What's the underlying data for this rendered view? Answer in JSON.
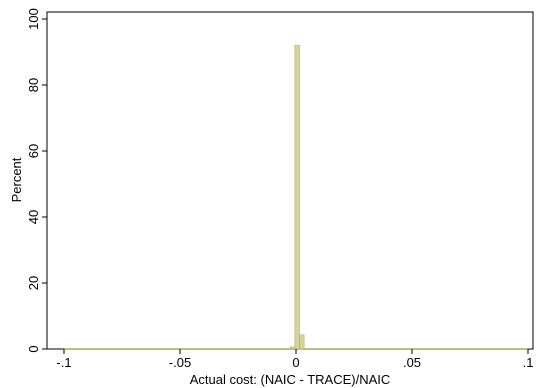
{
  "chart_data": {
    "type": "bar",
    "title": "",
    "xlabel": "Actual cost: (NAIC - TRACE)/NAIC",
    "ylabel": "Percent",
    "xlim": [
      -0.1,
      0.1
    ],
    "ylim": [
      0,
      100
    ],
    "x_ticks": [
      -0.1,
      -0.05,
      0,
      0.05,
      0.1
    ],
    "x_tick_labels": [
      "-.1",
      "-.05",
      "0",
      ".05",
      ".1"
    ],
    "y_ticks": [
      0,
      20,
      40,
      60,
      80,
      100
    ],
    "y_tick_labels": [
      "0",
      "20",
      "40",
      "60",
      "80",
      "100"
    ],
    "grid": false,
    "bar_color": "#d7d49a",
    "bar_edge_color": "#b0ad6f",
    "bins": [
      {
        "x0": -0.1,
        "x1": -0.0025,
        "value": 0.15
      },
      {
        "x0": -0.0025,
        "x1": -0.0005,
        "value": 0.6
      },
      {
        "x0": -0.0005,
        "x1": 0.0015,
        "value": 92
      },
      {
        "x0": 0.0015,
        "x1": 0.0035,
        "value": 4.3
      },
      {
        "x0": 0.0035,
        "x1": 0.1,
        "value": 0.15
      }
    ]
  }
}
